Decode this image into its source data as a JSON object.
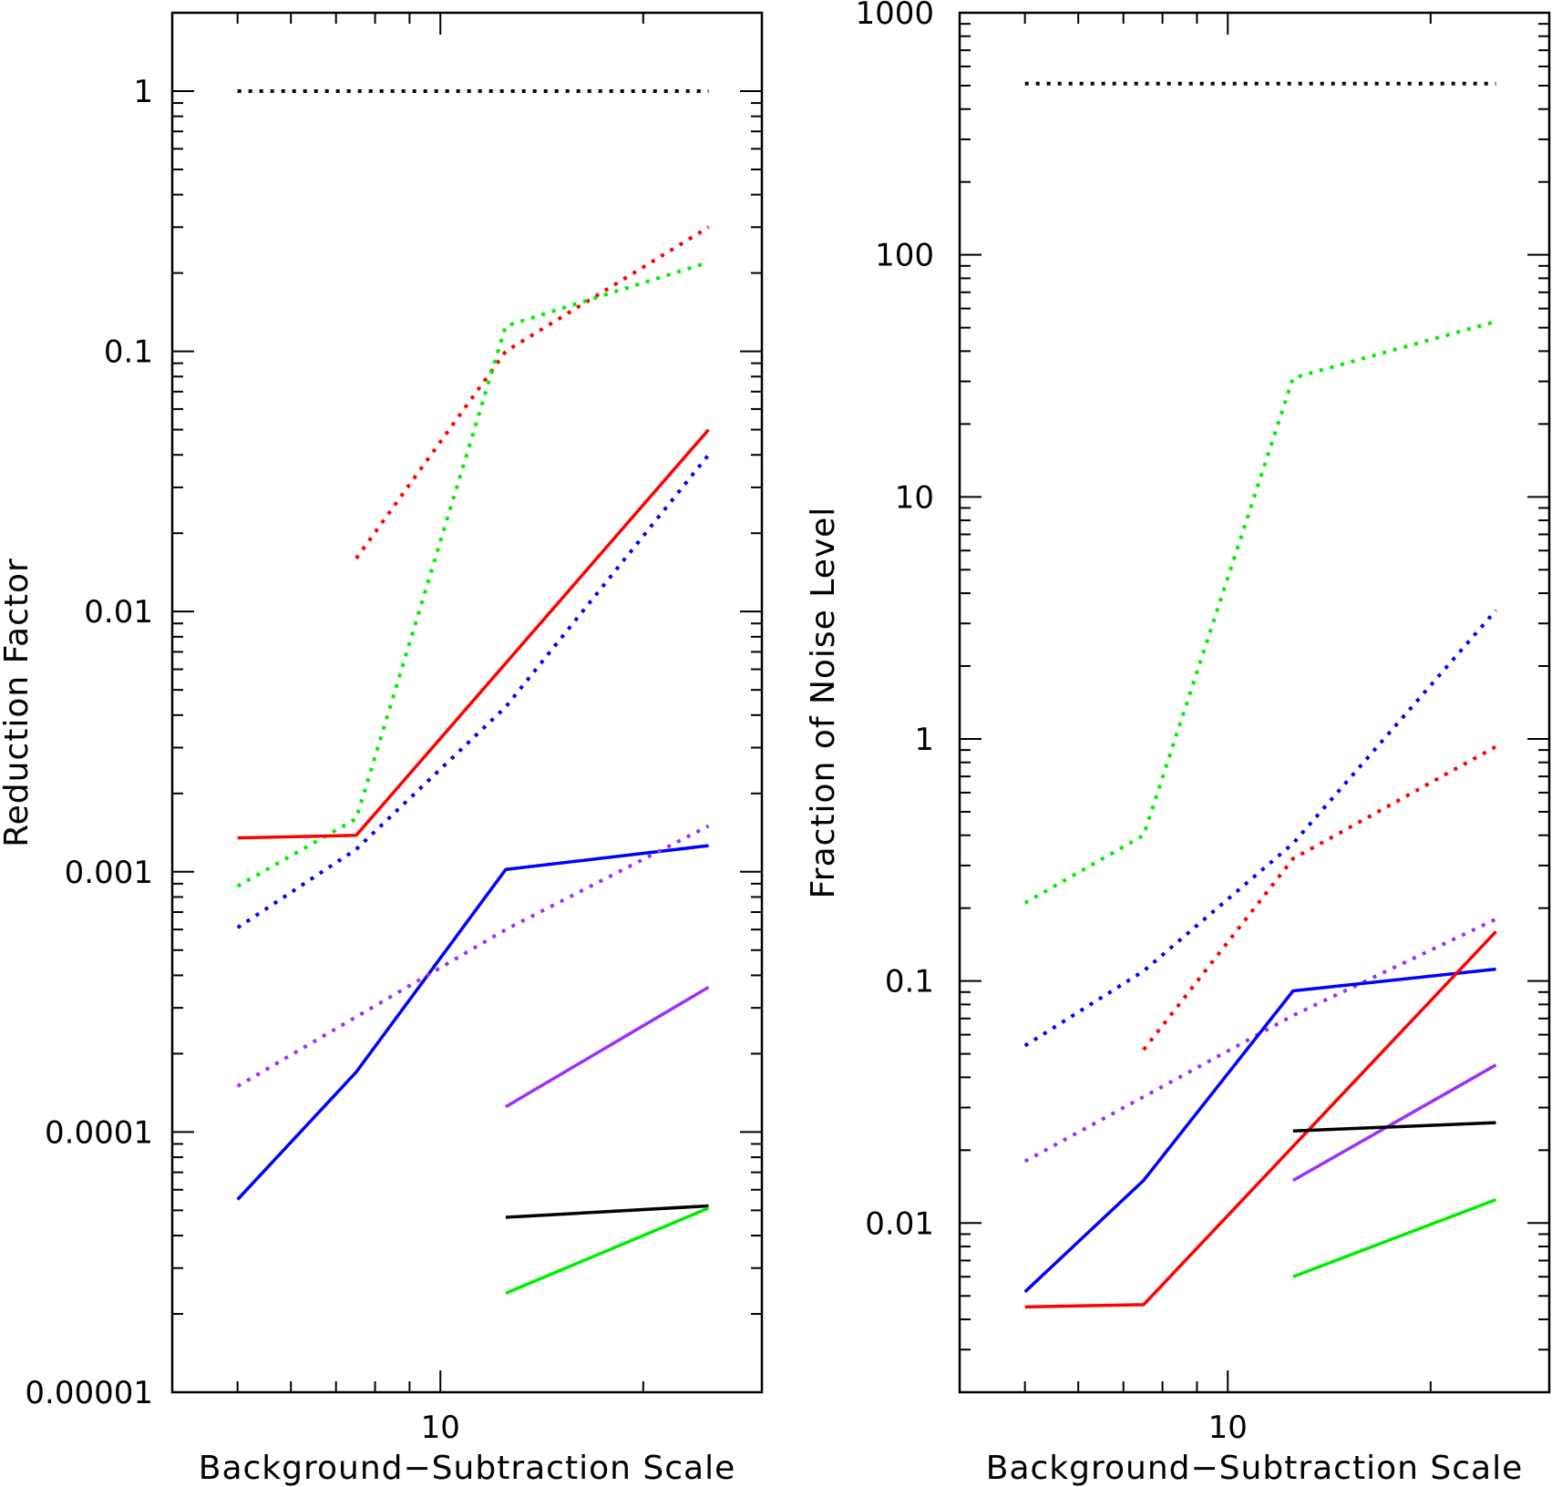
{
  "colors": {
    "black": "#000000",
    "red": "#ff0000",
    "green": "#00ee00",
    "blue": "#0000ff",
    "purple": "#9b30ff"
  },
  "chart_data": [
    {
      "type": "line",
      "xscale": "log",
      "yscale": "log",
      "xlabel": "Background−Subtraction Scale",
      "ylabel": "Reduction Factor",
      "xlim": [
        4.0,
        30.0
      ],
      "ylim": [
        1e-05,
        2.0
      ],
      "x_ticks_labeled": [
        {
          "value": 10,
          "label": "10"
        }
      ],
      "y_ticks_labeled": [
        {
          "value": 1e-05,
          "label": "0.00001"
        },
        {
          "value": 0.0001,
          "label": "0.0001"
        },
        {
          "value": 0.001,
          "label": "0.001"
        },
        {
          "value": 0.01,
          "label": "0.01"
        },
        {
          "value": 0.1,
          "label": "0.1"
        },
        {
          "value": 1,
          "label": "1"
        }
      ],
      "series": [
        {
          "name": "black-dotted",
          "color": "black",
          "style": "dotted",
          "x": [
            5,
            25
          ],
          "y": [
            1.0,
            1.0
          ]
        },
        {
          "name": "red-dotted",
          "color": "red",
          "style": "dotted",
          "x": [
            7.5,
            12.5,
            25
          ],
          "y": [
            0.016,
            0.1,
            0.3
          ]
        },
        {
          "name": "green-dotted",
          "color": "green",
          "style": "dotted",
          "x": [
            5,
            7.5,
            12.5,
            25
          ],
          "y": [
            0.00088,
            0.0016,
            0.125,
            0.22
          ]
        },
        {
          "name": "red-solid",
          "color": "red",
          "style": "solid",
          "x": [
            5,
            7.5,
            25
          ],
          "y": [
            0.00135,
            0.00138,
            0.05
          ]
        },
        {
          "name": "blue-dotted",
          "color": "blue",
          "style": "dotted",
          "x": [
            5,
            7.5,
            12.5,
            25
          ],
          "y": [
            0.00061,
            0.00122,
            0.0043,
            0.04
          ]
        },
        {
          "name": "blue-solid",
          "color": "blue",
          "style": "solid",
          "x": [
            5,
            7.5,
            12.5,
            25
          ],
          "y": [
            5.5e-05,
            0.00017,
            0.00102,
            0.00126
          ]
        },
        {
          "name": "purple-dotted",
          "color": "purple",
          "style": "dotted",
          "x": [
            5,
            12.5,
            25
          ],
          "y": [
            0.00015,
            0.0006,
            0.0015
          ]
        },
        {
          "name": "purple-solid",
          "color": "purple",
          "style": "solid",
          "x": [
            12.5,
            25
          ],
          "y": [
            0.000125,
            0.00036
          ]
        },
        {
          "name": "black-solid",
          "color": "black",
          "style": "solid",
          "x": [
            12.5,
            25
          ],
          "y": [
            4.7e-05,
            5.2e-05
          ]
        },
        {
          "name": "green-solid",
          "color": "green",
          "style": "solid",
          "x": [
            12.5,
            25
          ],
          "y": [
            2.4e-05,
            5.1e-05
          ]
        }
      ]
    },
    {
      "type": "line",
      "xscale": "log",
      "yscale": "log",
      "xlabel": "Background−Subtraction Scale",
      "ylabel": "Fraction of Noise Level",
      "xlim": [
        4.0,
        30.0
      ],
      "ylim": [
        0.002,
        1000.0
      ],
      "x_ticks_labeled": [
        {
          "value": 10,
          "label": "10"
        }
      ],
      "y_ticks_labeled": [
        {
          "value": 0.01,
          "label": "0.01"
        },
        {
          "value": 0.1,
          "label": "0.1"
        },
        {
          "value": 1,
          "label": "1"
        },
        {
          "value": 10,
          "label": "10"
        },
        {
          "value": 100,
          "label": "100"
        },
        {
          "value": 1000,
          "label": "1000"
        }
      ],
      "series": [
        {
          "name": "black-dotted",
          "color": "black",
          "style": "dotted",
          "x": [
            5,
            25
          ],
          "y": [
            510,
            510
          ]
        },
        {
          "name": "green-dotted",
          "color": "green",
          "style": "dotted",
          "x": [
            5,
            7.5,
            12.5,
            25
          ],
          "y": [
            0.21,
            0.4,
            31,
            53
          ]
        },
        {
          "name": "blue-dotted",
          "color": "blue",
          "style": "dotted",
          "x": [
            5,
            7.5,
            12.5,
            25
          ],
          "y": [
            0.054,
            0.11,
            0.37,
            3.4
          ]
        },
        {
          "name": "red-dotted",
          "color": "red",
          "style": "dotted",
          "x": [
            7.5,
            12.5,
            25
          ],
          "y": [
            0.052,
            0.32,
            0.93
          ]
        },
        {
          "name": "purple-dotted",
          "color": "purple",
          "style": "dotted",
          "x": [
            5,
            12.5,
            25
          ],
          "y": [
            0.018,
            0.072,
            0.18
          ]
        },
        {
          "name": "blue-solid",
          "color": "blue",
          "style": "solid",
          "x": [
            5,
            7.5,
            12.5,
            25
          ],
          "y": [
            0.0052,
            0.015,
            0.091,
            0.112
          ]
        },
        {
          "name": "red-solid",
          "color": "red",
          "style": "solid",
          "x": [
            5,
            7.5,
            25
          ],
          "y": [
            0.0045,
            0.0046,
            0.16
          ]
        },
        {
          "name": "purple-solid",
          "color": "purple",
          "style": "solid",
          "x": [
            12.5,
            25
          ],
          "y": [
            0.015,
            0.045
          ]
        },
        {
          "name": "black-solid",
          "color": "black",
          "style": "solid",
          "x": [
            12.5,
            25
          ],
          "y": [
            0.024,
            0.026
          ]
        },
        {
          "name": "green-solid",
          "color": "green",
          "style": "solid",
          "x": [
            12.5,
            25
          ],
          "y": [
            0.006,
            0.0125
          ]
        }
      ]
    }
  ]
}
